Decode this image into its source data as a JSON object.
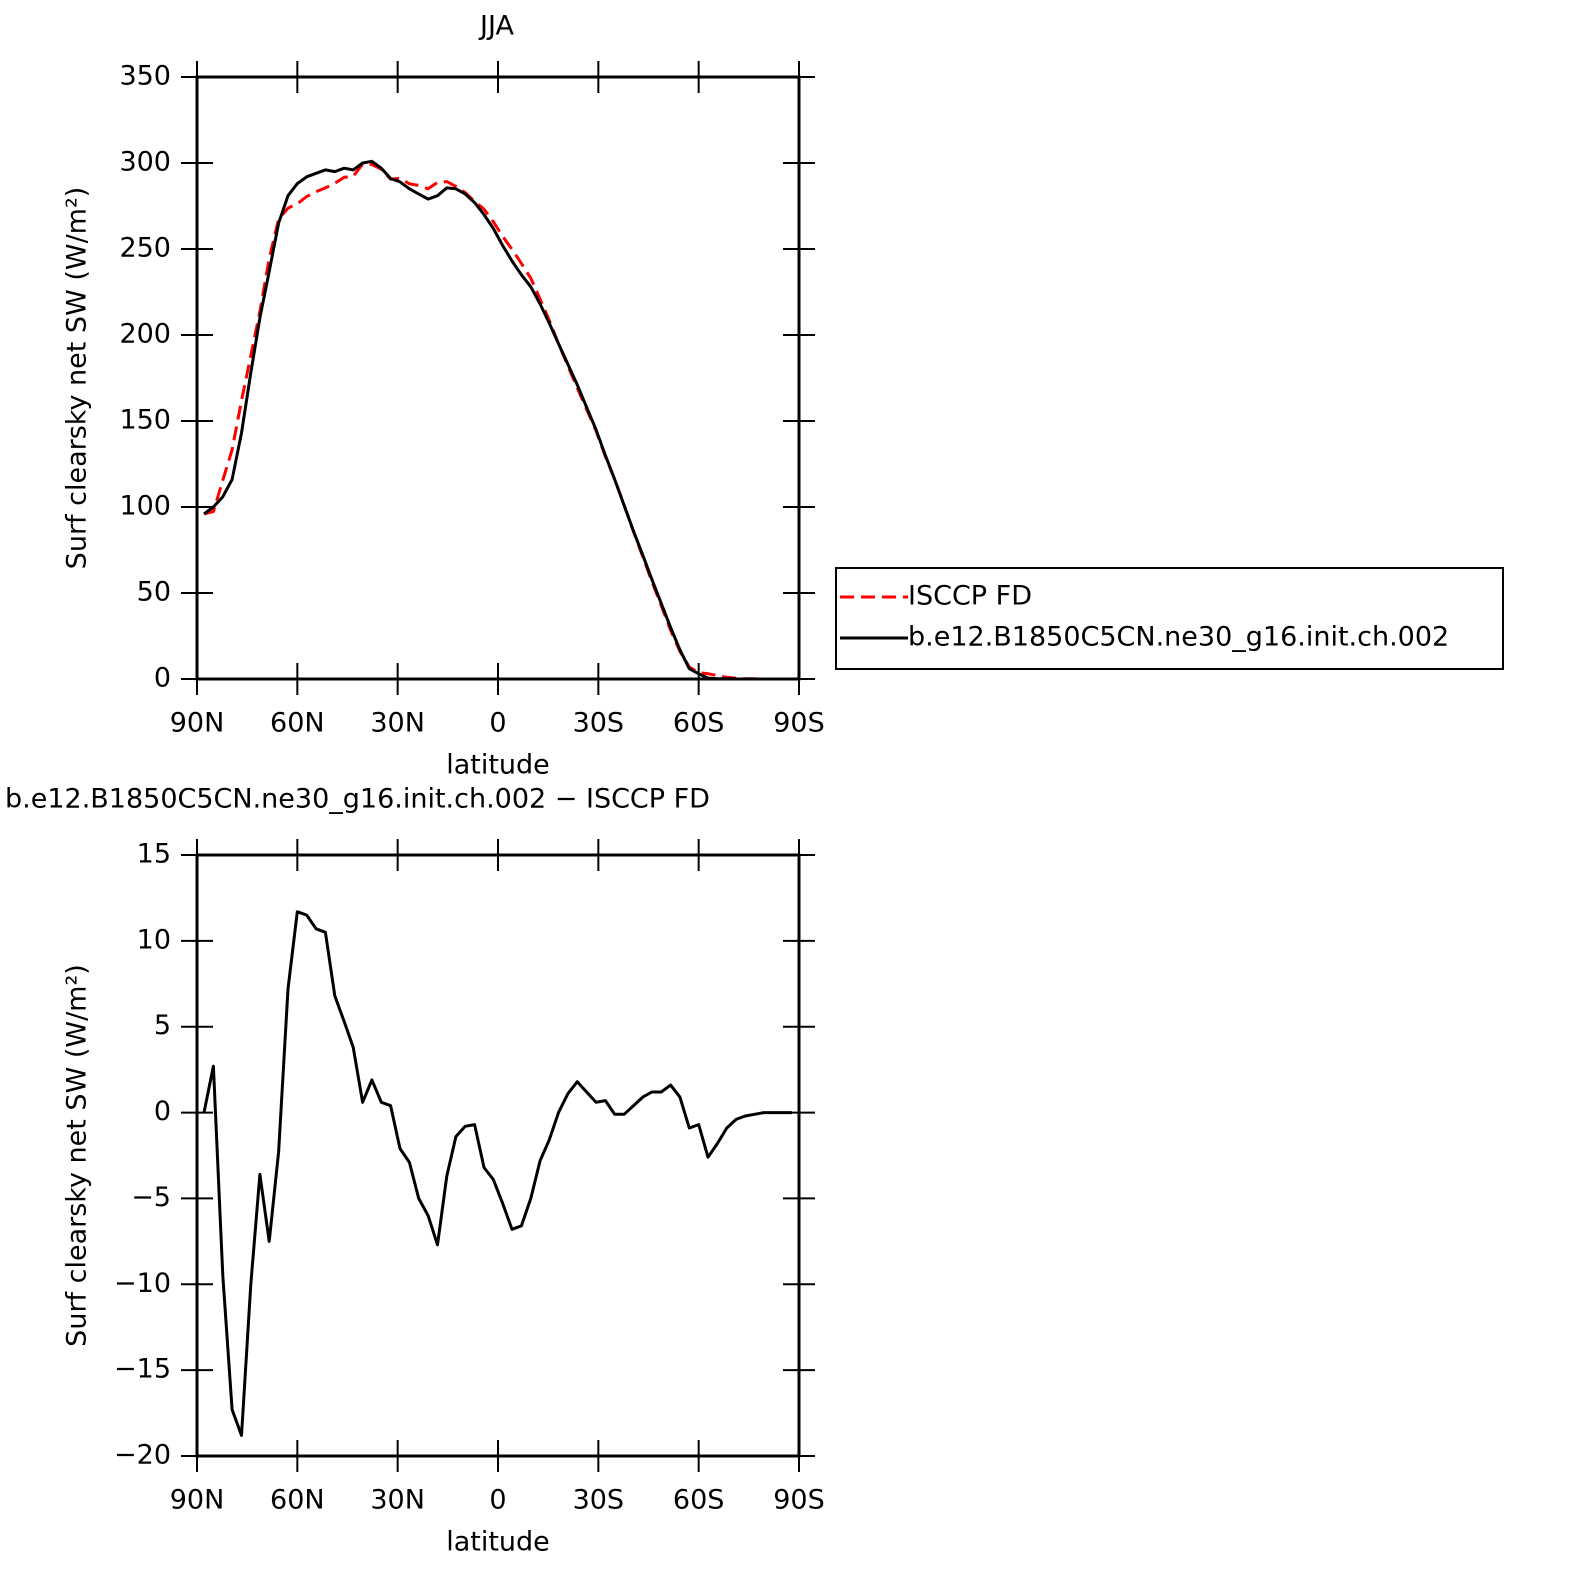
{
  "chart_data": [
    {
      "type": "line",
      "title": "JJA",
      "xlabel": "latitude",
      "ylabel": "Surf clearsky net SW (W/m²)",
      "x": [
        87.9,
        85.1,
        82.3,
        79.5,
        76.7,
        73.9,
        71.2,
        68.4,
        65.6,
        62.8,
        60.0,
        57.2,
        54.4,
        51.6,
        48.8,
        46.0,
        43.3,
        40.5,
        37.7,
        34.9,
        32.1,
        29.3,
        26.5,
        23.7,
        20.9,
        18.1,
        15.3,
        12.6,
        9.8,
        7.0,
        4.2,
        1.4,
        -1.4,
        -4.2,
        -7.0,
        -9.8,
        -12.6,
        -15.3,
        -18.1,
        -20.9,
        -23.7,
        -26.5,
        -29.3,
        -32.1,
        -34.9,
        -37.7,
        -40.5,
        -43.3,
        -46.0,
        -48.8,
        -51.6,
        -54.4,
        -57.2,
        -60.0,
        -62.8,
        -65.6,
        -68.4,
        -71.2,
        -73.9,
        -76.7,
        -79.5,
        -82.3,
        -85.1,
        -87.9
      ],
      "series": [
        {
          "name": "ISCCP FD",
          "color": "#ff0000",
          "dashed": true,
          "values": [
            96,
            97.3,
            115.5,
            133.3,
            161.8,
            188,
            213.6,
            244.5,
            267.3,
            273.8,
            276.3,
            280.5,
            283.3,
            285.5,
            288.2,
            291.7,
            292.2,
            299.4,
            299.1,
            296.4,
            290.6,
            291.1,
            287.9,
            287,
            285,
            288.7,
            289.2,
            286.4,
            282.8,
            277.7,
            273.2,
            265.9,
            257.3,
            249.8,
            241.6,
            233,
            220.8,
            208.6,
            195,
            181.9,
            169.2,
            156.8,
            144.4,
            129.3,
            116.1,
            101.1,
            85.6,
            71.1,
            56.8,
            42.8,
            28.4,
            16.1,
            6.9,
            3.7,
            3.1,
            2.0,
            1.0,
            0.4,
            0.2,
            0.1,
            0,
            0,
            0,
            0
          ]
        },
        {
          "name": "b.e12.B1850C5CN.ne30_g16.init.ch.002",
          "color": "#000000",
          "dashed": false,
          "values": [
            96,
            100,
            106,
            116,
            143,
            178,
            210,
            237,
            265,
            281,
            288,
            292,
            294,
            296,
            295,
            297,
            296,
            300,
            301,
            297,
            291,
            289,
            285,
            282,
            279,
            281,
            285.5,
            285,
            282,
            277,
            270,
            262,
            252,
            243,
            235,
            228,
            218,
            207,
            195,
            183,
            171,
            158,
            145,
            130,
            116,
            101,
            86,
            72,
            58,
            44,
            30,
            17,
            6,
            3,
            0.5,
            0.2,
            0.1,
            0,
            0,
            0,
            0,
            0,
            0,
            0
          ]
        }
      ],
      "xlim": [
        90,
        -90
      ],
      "xticks": [
        {
          "value": 90,
          "label": "90N"
        },
        {
          "value": 60,
          "label": "60N"
        },
        {
          "value": 30,
          "label": "30N"
        },
        0,
        {
          "value": -30,
          "label": "30S"
        },
        {
          "value": -60,
          "label": "60S"
        },
        {
          "value": -90,
          "label": "90S"
        }
      ],
      "ylim": [
        0,
        350
      ],
      "yticks": [
        0,
        50,
        100,
        150,
        200,
        250,
        300,
        350
      ],
      "legend": "right"
    },
    {
      "type": "line",
      "title": "b.e12.B1850C5CN.ne30_g16.init.ch.002 − ISCCP FD",
      "xlabel": "latitude",
      "ylabel": "Surf clearsky net SW (W/m²)",
      "x": [
        87.9,
        85.1,
        82.3,
        79.5,
        76.7,
        73.9,
        71.2,
        68.4,
        65.6,
        62.8,
        60.0,
        57.2,
        54.4,
        51.6,
        48.8,
        46.0,
        43.3,
        40.5,
        37.7,
        34.9,
        32.1,
        29.3,
        26.5,
        23.7,
        20.9,
        18.1,
        15.3,
        12.6,
        9.8,
        7.0,
        4.2,
        1.4,
        -1.4,
        -4.2,
        -7.0,
        -9.8,
        -12.6,
        -15.3,
        -18.1,
        -20.9,
        -23.7,
        -26.5,
        -29.3,
        -32.1,
        -34.9,
        -37.7,
        -40.5,
        -43.3,
        -46.0,
        -48.8,
        -51.6,
        -54.4,
        -57.2,
        -60.0,
        -62.8,
        -65.6,
        -68.4,
        -71.2,
        -73.9,
        -76.7,
        -79.5,
        -82.3,
        -85.1,
        -87.9
      ],
      "color": "#000000",
      "values": [
        0,
        2.7,
        -9.5,
        -17.3,
        -18.8,
        -10,
        -3.6,
        -7.5,
        -2.3,
        7.2,
        11.7,
        11.5,
        10.7,
        10.5,
        6.8,
        5.3,
        3.8,
        0.6,
        1.9,
        0.6,
        0.4,
        -2.1,
        -2.9,
        -5,
        -6,
        -7.7,
        -3.7,
        -1.4,
        -0.8,
        -0.7,
        -3.2,
        -3.9,
        -5.3,
        -6.8,
        -6.6,
        -5,
        -2.8,
        -1.6,
        0,
        1.1,
        1.8,
        1.2,
        0.6,
        0.7,
        -0.1,
        -0.1,
        0.4,
        0.9,
        1.2,
        1.2,
        1.6,
        0.9,
        -0.9,
        -0.7,
        -2.6,
        -1.8,
        -0.9,
        -0.4,
        -0.2,
        -0.1,
        0,
        0,
        0,
        0
      ],
      "xlim": [
        90,
        -90
      ],
      "xticks": [
        {
          "value": 90,
          "label": "90N"
        },
        {
          "value": 60,
          "label": "60N"
        },
        {
          "value": 30,
          "label": "30N"
        },
        0,
        {
          "value": -30,
          "label": "30S"
        },
        {
          "value": -60,
          "label": "60S"
        },
        {
          "value": -90,
          "label": "90S"
        }
      ],
      "ylim": [
        -20,
        15
      ],
      "yticks": [
        {
          "value": -20,
          "label": "−20"
        },
        {
          "value": -15,
          "label": "−15"
        },
        {
          "value": -10,
          "label": "−10"
        },
        {
          "value": -5,
          "label": "−5"
        },
        0,
        5,
        10,
        15
      ]
    }
  ]
}
